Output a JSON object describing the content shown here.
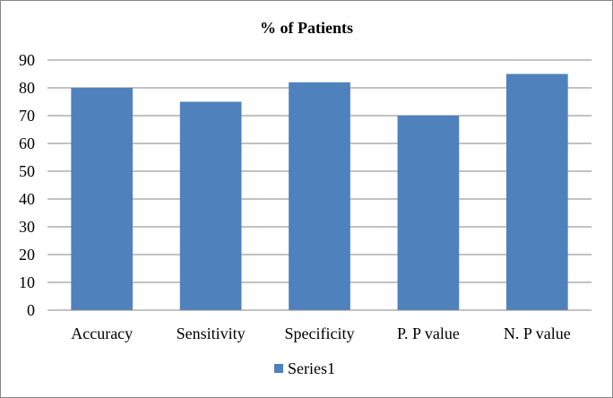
{
  "chart_data": {
    "type": "bar",
    "title": "% of Patients",
    "categories": [
      "Accuracy",
      "Sensitivity",
      "Specificity",
      "P. P value",
      "N. P value"
    ],
    "series": [
      {
        "name": "Series1",
        "values": [
          80,
          75,
          82,
          70,
          85
        ],
        "color": "#4F81BD"
      }
    ],
    "xlabel": "",
    "ylabel": "",
    "ylim": [
      0,
      90
    ],
    "yticks": [
      0,
      10,
      20,
      30,
      40,
      50,
      60,
      70,
      80,
      90
    ],
    "grid": true,
    "legend": "bottom"
  }
}
